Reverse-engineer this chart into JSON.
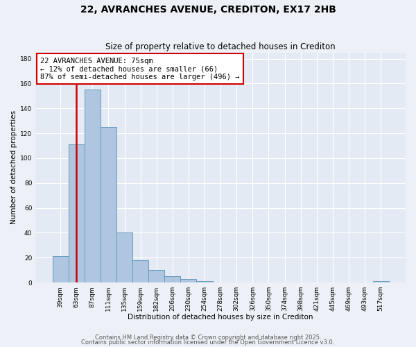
{
  "title": "22, AVRANCHES AVENUE, CREDITON, EX17 2HB",
  "subtitle": "Size of property relative to detached houses in Crediton",
  "xlabel": "Distribution of detached houses by size in Crediton",
  "ylabel": "Number of detached properties",
  "bar_labels": [
    "39sqm",
    "63sqm",
    "87sqm",
    "111sqm",
    "135sqm",
    "159sqm",
    "182sqm",
    "206sqm",
    "230sqm",
    "254sqm",
    "278sqm",
    "302sqm",
    "326sqm",
    "350sqm",
    "374sqm",
    "398sqm",
    "421sqm",
    "445sqm",
    "469sqm",
    "493sqm",
    "517sqm"
  ],
  "bar_values": [
    21,
    111,
    155,
    125,
    40,
    18,
    10,
    5,
    3,
    1,
    0,
    0,
    0,
    0,
    0,
    0,
    0,
    0,
    0,
    0,
    1
  ],
  "bar_color": "#aec6df",
  "bar_edge_color": "#6699bb",
  "vline_pos": 0.75,
  "vline_color": "#cc0000",
  "annotation_line1": "22 AVRANCHES AVENUE: 75sqm",
  "annotation_line2": "← 12% of detached houses are smaller (66)",
  "annotation_line3": "87% of semi-detached houses are larger (496) →",
  "box_edge_color": "#cc0000",
  "ylim": [
    0,
    185
  ],
  "yticks": [
    0,
    20,
    40,
    60,
    80,
    100,
    120,
    140,
    160,
    180
  ],
  "footer1": "Contains HM Land Registry data © Crown copyright and database right 2025.",
  "footer2": "Contains public sector information licensed under the Open Government Licence v3.0.",
  "bg_color": "#edf1f7",
  "plot_bg_color": "#e4eaf4",
  "grid_color": "#ffffff",
  "title_fontsize": 10,
  "subtitle_fontsize": 8.5,
  "axis_label_fontsize": 7.5,
  "tick_fontsize": 6.5,
  "annotation_fontsize": 7.5,
  "footer_fontsize": 6.0
}
